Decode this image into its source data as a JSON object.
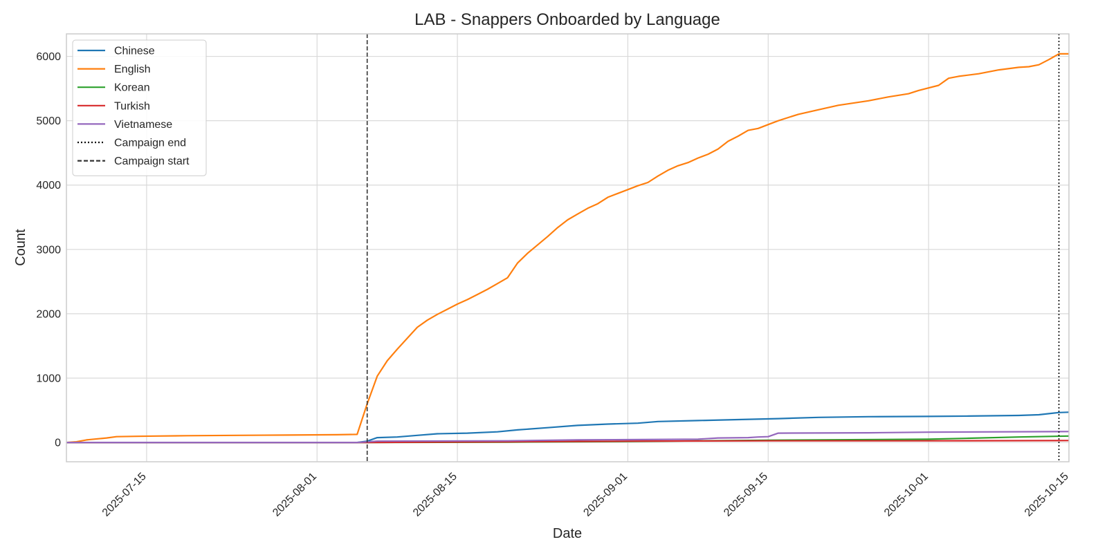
{
  "chart_data": {
    "type": "line",
    "title": "LAB - Snappers Onboarded by Language",
    "xlabel": "Date",
    "ylabel": "Count",
    "x_range": [
      "2025-07-07",
      "2025-10-15"
    ],
    "ylim": [
      -300,
      6350
    ],
    "x_ticks": [
      "2025-07-15",
      "2025-08-01",
      "2025-08-15",
      "2025-09-01",
      "2025-09-15",
      "2025-10-01",
      "2025-10-15"
    ],
    "y_ticks": [
      0,
      1000,
      2000,
      3000,
      4000,
      5000,
      6000
    ],
    "grid": true,
    "legend_position": "upper-left",
    "vlines": [
      {
        "name": "Campaign end",
        "date": "2025-10-14",
        "style": "dotted",
        "color": "#000000"
      },
      {
        "name": "Campaign start",
        "date": "2025-08-06",
        "style": "dashed",
        "color": "#333333"
      }
    ],
    "series": [
      {
        "name": "Chinese",
        "color": "#1f77b4",
        "points": [
          [
            "2025-07-07",
            0
          ],
          [
            "2025-08-05",
            0
          ],
          [
            "2025-08-06",
            20
          ],
          [
            "2025-08-07",
            75
          ],
          [
            "2025-08-09",
            85
          ],
          [
            "2025-08-11",
            110
          ],
          [
            "2025-08-13",
            135
          ],
          [
            "2025-08-16",
            145
          ],
          [
            "2025-08-19",
            165
          ],
          [
            "2025-08-21",
            195
          ],
          [
            "2025-08-24",
            230
          ],
          [
            "2025-08-27",
            265
          ],
          [
            "2025-08-30",
            285
          ],
          [
            "2025-09-02",
            300
          ],
          [
            "2025-09-04",
            325
          ],
          [
            "2025-09-08",
            340
          ],
          [
            "2025-09-12",
            355
          ],
          [
            "2025-09-16",
            370
          ],
          [
            "2025-09-20",
            390
          ],
          [
            "2025-09-25",
            400
          ],
          [
            "2025-10-01",
            405
          ],
          [
            "2025-10-05",
            410
          ],
          [
            "2025-10-10",
            420
          ],
          [
            "2025-10-12",
            430
          ],
          [
            "2025-10-14",
            465
          ],
          [
            "2025-10-15",
            470
          ]
        ]
      },
      {
        "name": "English",
        "color": "#ff7f0e",
        "points": [
          [
            "2025-07-07",
            0
          ],
          [
            "2025-07-08",
            10
          ],
          [
            "2025-07-09",
            40
          ],
          [
            "2025-07-11",
            70
          ],
          [
            "2025-07-12",
            90
          ],
          [
            "2025-07-14",
            95
          ],
          [
            "2025-07-16",
            100
          ],
          [
            "2025-07-19",
            105
          ],
          [
            "2025-07-24",
            110
          ],
          [
            "2025-07-29",
            115
          ],
          [
            "2025-08-03",
            120
          ],
          [
            "2025-08-05",
            125
          ],
          [
            "2025-08-06",
            600
          ],
          [
            "2025-08-07",
            1030
          ],
          [
            "2025-08-08",
            1270
          ],
          [
            "2025-08-09",
            1450
          ],
          [
            "2025-08-10",
            1620
          ],
          [
            "2025-08-11",
            1790
          ],
          [
            "2025-08-12",
            1900
          ],
          [
            "2025-08-13",
            1990
          ],
          [
            "2025-08-14",
            2070
          ],
          [
            "2025-08-15",
            2150
          ],
          [
            "2025-08-16",
            2220
          ],
          [
            "2025-08-17",
            2300
          ],
          [
            "2025-08-18",
            2380
          ],
          [
            "2025-08-19",
            2470
          ],
          [
            "2025-08-20",
            2560
          ],
          [
            "2025-08-21",
            2790
          ],
          [
            "2025-08-22",
            2940
          ],
          [
            "2025-08-23",
            3070
          ],
          [
            "2025-08-24",
            3200
          ],
          [
            "2025-08-25",
            3340
          ],
          [
            "2025-08-26",
            3460
          ],
          [
            "2025-08-27",
            3550
          ],
          [
            "2025-08-28",
            3640
          ],
          [
            "2025-08-29",
            3710
          ],
          [
            "2025-08-30",
            3810
          ],
          [
            "2025-08-31",
            3870
          ],
          [
            "2025-09-01",
            3930
          ],
          [
            "2025-09-02",
            3990
          ],
          [
            "2025-09-03",
            4040
          ],
          [
            "2025-09-04",
            4140
          ],
          [
            "2025-09-05",
            4230
          ],
          [
            "2025-09-06",
            4300
          ],
          [
            "2025-09-07",
            4350
          ],
          [
            "2025-09-08",
            4420
          ],
          [
            "2025-09-09",
            4480
          ],
          [
            "2025-09-10",
            4560
          ],
          [
            "2025-09-11",
            4680
          ],
          [
            "2025-09-12",
            4760
          ],
          [
            "2025-09-13",
            4850
          ],
          [
            "2025-09-14",
            4880
          ],
          [
            "2025-09-15",
            4940
          ],
          [
            "2025-09-16",
            5000
          ],
          [
            "2025-09-17",
            5050
          ],
          [
            "2025-09-18",
            5100
          ],
          [
            "2025-09-20",
            5170
          ],
          [
            "2025-09-22",
            5240
          ],
          [
            "2025-09-25",
            5310
          ],
          [
            "2025-09-27",
            5370
          ],
          [
            "2025-09-29",
            5420
          ],
          [
            "2025-09-30",
            5470
          ],
          [
            "2025-10-02",
            5550
          ],
          [
            "2025-10-03",
            5660
          ],
          [
            "2025-10-04",
            5690
          ],
          [
            "2025-10-06",
            5730
          ],
          [
            "2025-10-08",
            5790
          ],
          [
            "2025-10-10",
            5830
          ],
          [
            "2025-10-11",
            5840
          ],
          [
            "2025-10-12",
            5870
          ],
          [
            "2025-10-13",
            5950
          ],
          [
            "2025-10-14",
            6040
          ],
          [
            "2025-10-15",
            6040
          ]
        ]
      },
      {
        "name": "Korean",
        "color": "#2ca02c",
        "points": [
          [
            "2025-07-07",
            0
          ],
          [
            "2025-08-06",
            0
          ],
          [
            "2025-08-20",
            5
          ],
          [
            "2025-09-01",
            15
          ],
          [
            "2025-09-15",
            35
          ],
          [
            "2025-10-01",
            50
          ],
          [
            "2025-10-05",
            65
          ],
          [
            "2025-10-10",
            85
          ],
          [
            "2025-10-15",
            100
          ]
        ]
      },
      {
        "name": "Turkish",
        "color": "#d62728",
        "points": [
          [
            "2025-07-07",
            0
          ],
          [
            "2025-08-06",
            0
          ],
          [
            "2025-08-20",
            10
          ],
          [
            "2025-09-01",
            20
          ],
          [
            "2025-09-15",
            25
          ],
          [
            "2025-10-01",
            25
          ],
          [
            "2025-10-15",
            30
          ]
        ]
      },
      {
        "name": "Vietnamese",
        "color": "#9467bd",
        "points": [
          [
            "2025-07-07",
            0
          ],
          [
            "2025-08-05",
            0
          ],
          [
            "2025-08-07",
            20
          ],
          [
            "2025-08-20",
            25
          ],
          [
            "2025-08-27",
            40
          ],
          [
            "2025-09-08",
            50
          ],
          [
            "2025-09-10",
            70
          ],
          [
            "2025-09-13",
            75
          ],
          [
            "2025-09-14",
            85
          ],
          [
            "2025-09-15",
            90
          ],
          [
            "2025-09-16",
            145
          ],
          [
            "2025-09-25",
            150
          ],
          [
            "2025-10-01",
            160
          ],
          [
            "2025-10-15",
            170
          ]
        ]
      }
    ]
  }
}
